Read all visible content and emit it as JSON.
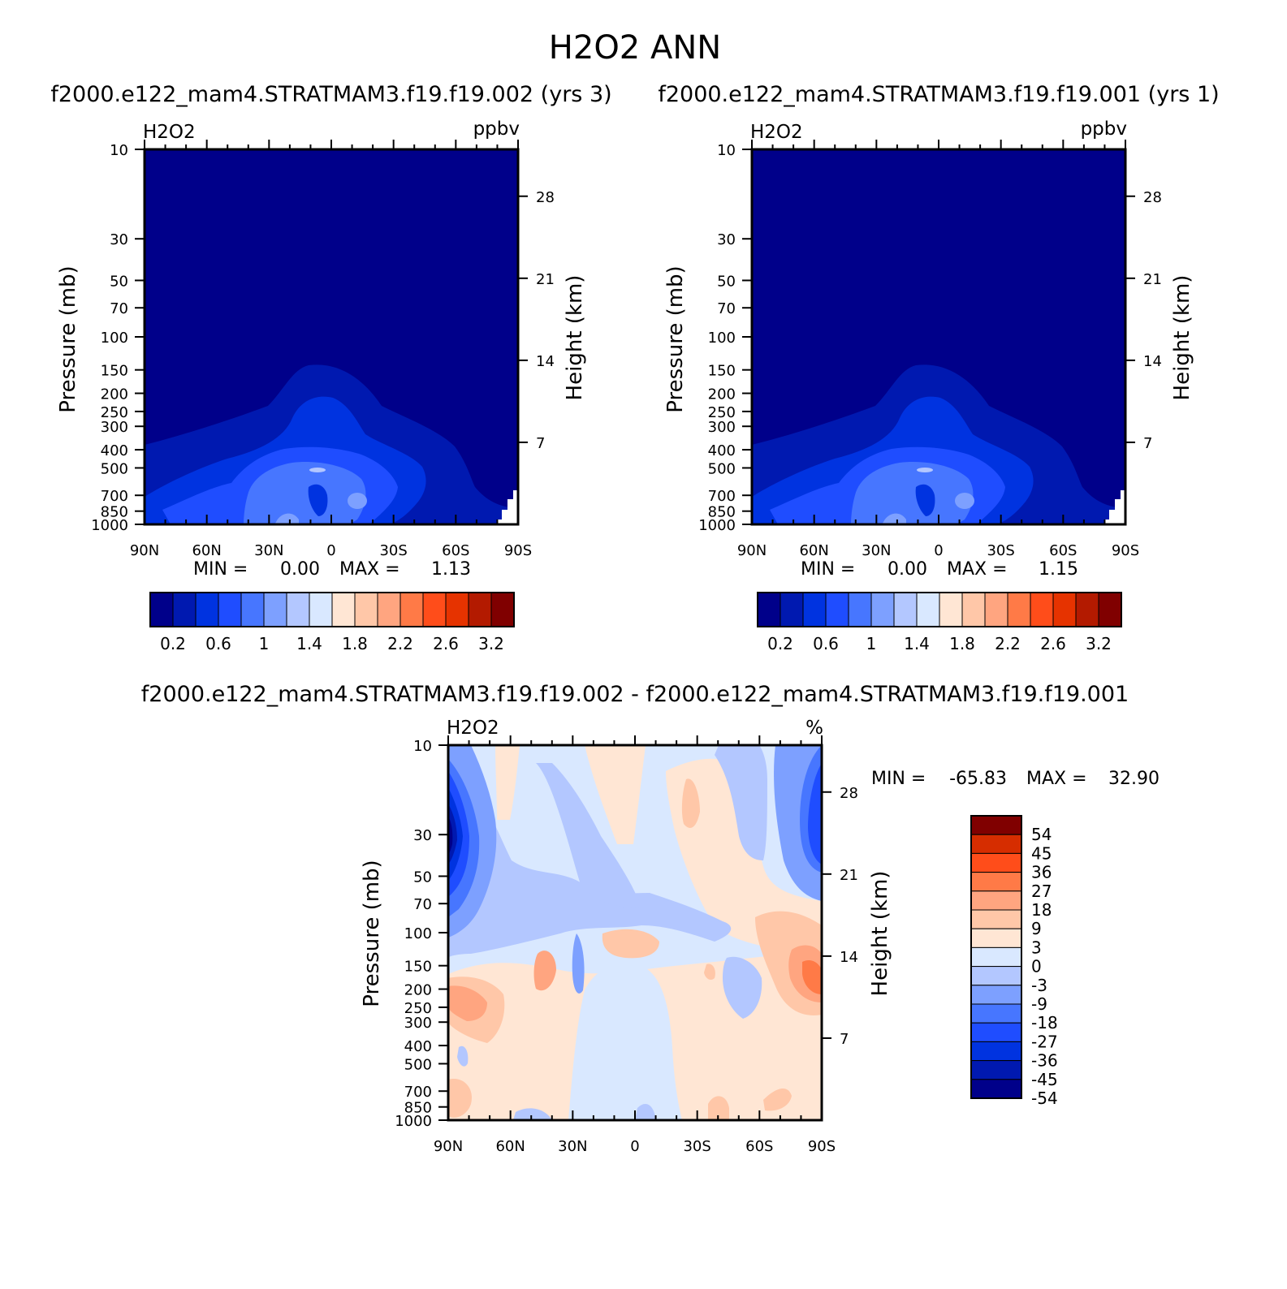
{
  "figure": {
    "title": "H2O2 ANN",
    "left_case": "f2000.e122_mam4.STRATMAM3.f19.f19.002 (yrs 3)",
    "right_case": "f2000.e122_mam4.STRATMAM3.f19.f19.001 (yrs 1)",
    "diff_title": "f2000.e122_mam4.STRATMAM3.f19.f19.002 - f2000.e122_mam4.STRATMAM3.f19.f19.001"
  },
  "colors": {
    "abs_levels": [
      "#00008a",
      "#0019b0",
      "#0033e0",
      "#1f4dff",
      "#4776ff",
      "#7da0ff",
      "#b3c7ff",
      "#d9e8ff",
      "#ffe6d4",
      "#ffc7a8",
      "#ffa580",
      "#ff7a47",
      "#ff4d1a",
      "#e63300",
      "#b31a00",
      "#800000"
    ],
    "diff_levels": [
      "#00008a",
      "#0019b0",
      "#0033e0",
      "#1f4dff",
      "#4776ff",
      "#7da0ff",
      "#b3c7ff",
      "#d9e8ff",
      "#ffe6d4",
      "#ffc7a8",
      "#ffa580",
      "#ff7a47",
      "#ff4d1a",
      "#d62d00",
      "#800000"
    ]
  },
  "chart_data": [
    {
      "type": "heatmap",
      "panel": "left",
      "variable": "H2O2",
      "units": "ppbv",
      "xlabel": "",
      "ylabel": "Pressure (mb)",
      "y2label": "Height (km)",
      "x_ticks": [
        "90N",
        "60N",
        "30N",
        "0",
        "30S",
        "60S",
        "90S"
      ],
      "y_ticks": [
        "10",
        "30",
        "50",
        "70",
        "100",
        "150",
        "200",
        "250",
        "300",
        "400",
        "500",
        "700",
        "850",
        "1000"
      ],
      "y2_ticks": [
        "28",
        "21",
        "14",
        "7"
      ],
      "min_label": "MIN =",
      "min_value": "0.00",
      "max_label": "MAX =",
      "max_value": "1.13",
      "colorbar_labels": [
        "0.2",
        "0.6",
        "1",
        "1.4",
        "1.8",
        "2.2",
        "2.6",
        "3.2"
      ],
      "ylim": [
        1000,
        10
      ],
      "xlim": [
        90,
        -90
      ]
    },
    {
      "type": "heatmap",
      "panel": "right",
      "variable": "H2O2",
      "units": "ppbv",
      "xlabel": "",
      "ylabel": "Pressure (mb)",
      "y2label": "Height (km)",
      "x_ticks": [
        "90N",
        "60N",
        "30N",
        "0",
        "30S",
        "60S",
        "90S"
      ],
      "y_ticks": [
        "10",
        "30",
        "50",
        "70",
        "100",
        "150",
        "200",
        "250",
        "300",
        "400",
        "500",
        "700",
        "850",
        "1000"
      ],
      "y2_ticks": [
        "28",
        "21",
        "14",
        "7"
      ],
      "min_label": "MIN =",
      "min_value": "0.00",
      "max_label": "MAX =",
      "max_value": "1.15",
      "colorbar_labels": [
        "0.2",
        "0.6",
        "1",
        "1.4",
        "1.8",
        "2.2",
        "2.6",
        "3.2"
      ],
      "ylim": [
        1000,
        10
      ],
      "xlim": [
        90,
        -90
      ]
    },
    {
      "type": "heatmap",
      "panel": "difference",
      "variable": "H2O2",
      "units": "%",
      "xlabel": "",
      "ylabel": "Pressure (mb)",
      "y2label": "Height (km)",
      "x_ticks": [
        "90N",
        "60N",
        "30N",
        "0",
        "30S",
        "60S",
        "90S"
      ],
      "y_ticks": [
        "10",
        "30",
        "50",
        "70",
        "100",
        "150",
        "200",
        "250",
        "300",
        "400",
        "500",
        "700",
        "850",
        "1000"
      ],
      "y2_ticks": [
        "28",
        "21",
        "14",
        "7"
      ],
      "min_label": "MIN =",
      "min_value": "-65.83",
      "max_label": "MAX =",
      "max_value": "32.90",
      "colorbar_labels": [
        "54",
        "45",
        "36",
        "27",
        "18",
        "9",
        "3",
        "0",
        "-3",
        "-9",
        "-18",
        "-27",
        "-36",
        "-45",
        "-54"
      ],
      "ylim": [
        1000,
        10
      ],
      "xlim": [
        90,
        -90
      ]
    }
  ]
}
